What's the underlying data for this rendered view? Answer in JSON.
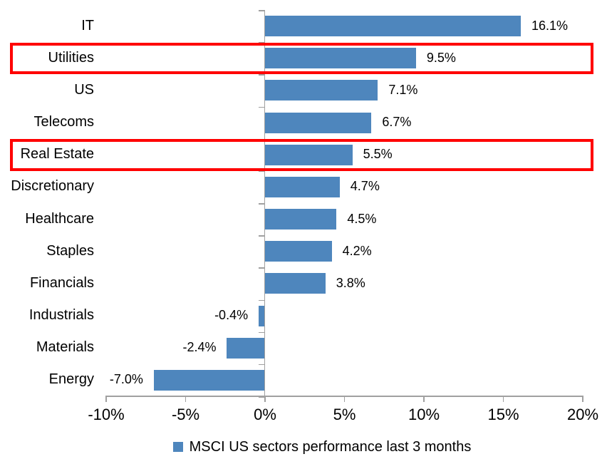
{
  "chart_data": {
    "type": "bar",
    "orientation": "horizontal",
    "title": "",
    "categories": [
      "IT",
      "Utilities",
      "US",
      "Telecoms",
      "Real Estate",
      "Discretionary",
      "Healthcare",
      "Staples",
      "Financials",
      "Industrials",
      "Materials",
      "Energy"
    ],
    "values": [
      16.1,
      9.5,
      7.1,
      6.7,
      5.5,
      4.7,
      4.5,
      4.2,
      3.8,
      -0.4,
      -2.4,
      -7.0
    ],
    "value_labels": [
      "16.1%",
      "9.5%",
      "7.1%",
      "6.7%",
      "5.5%",
      "4.7%",
      "4.5%",
      "4.2%",
      "3.8%",
      "-0.4%",
      "-2.4%",
      "-7.0%"
    ],
    "xlim": [
      -10,
      20
    ],
    "x_tick_values": [
      -10,
      -5,
      0,
      5,
      10,
      15,
      20
    ],
    "x_tick_labels": [
      "-10%",
      "-5%",
      "0%",
      "5%",
      "10%",
      "15%",
      "20%"
    ],
    "grid": "off",
    "legend": "MSCI US sectors performance last 3 months",
    "legend_position": "bottom-center",
    "bar_color": "#4E86BD",
    "highlight_color": "#FF0000",
    "axis_color": "#A0A0A0",
    "text_color": "#000000",
    "highlighted_categories": [
      "Utilities",
      "Real Estate"
    ]
  }
}
